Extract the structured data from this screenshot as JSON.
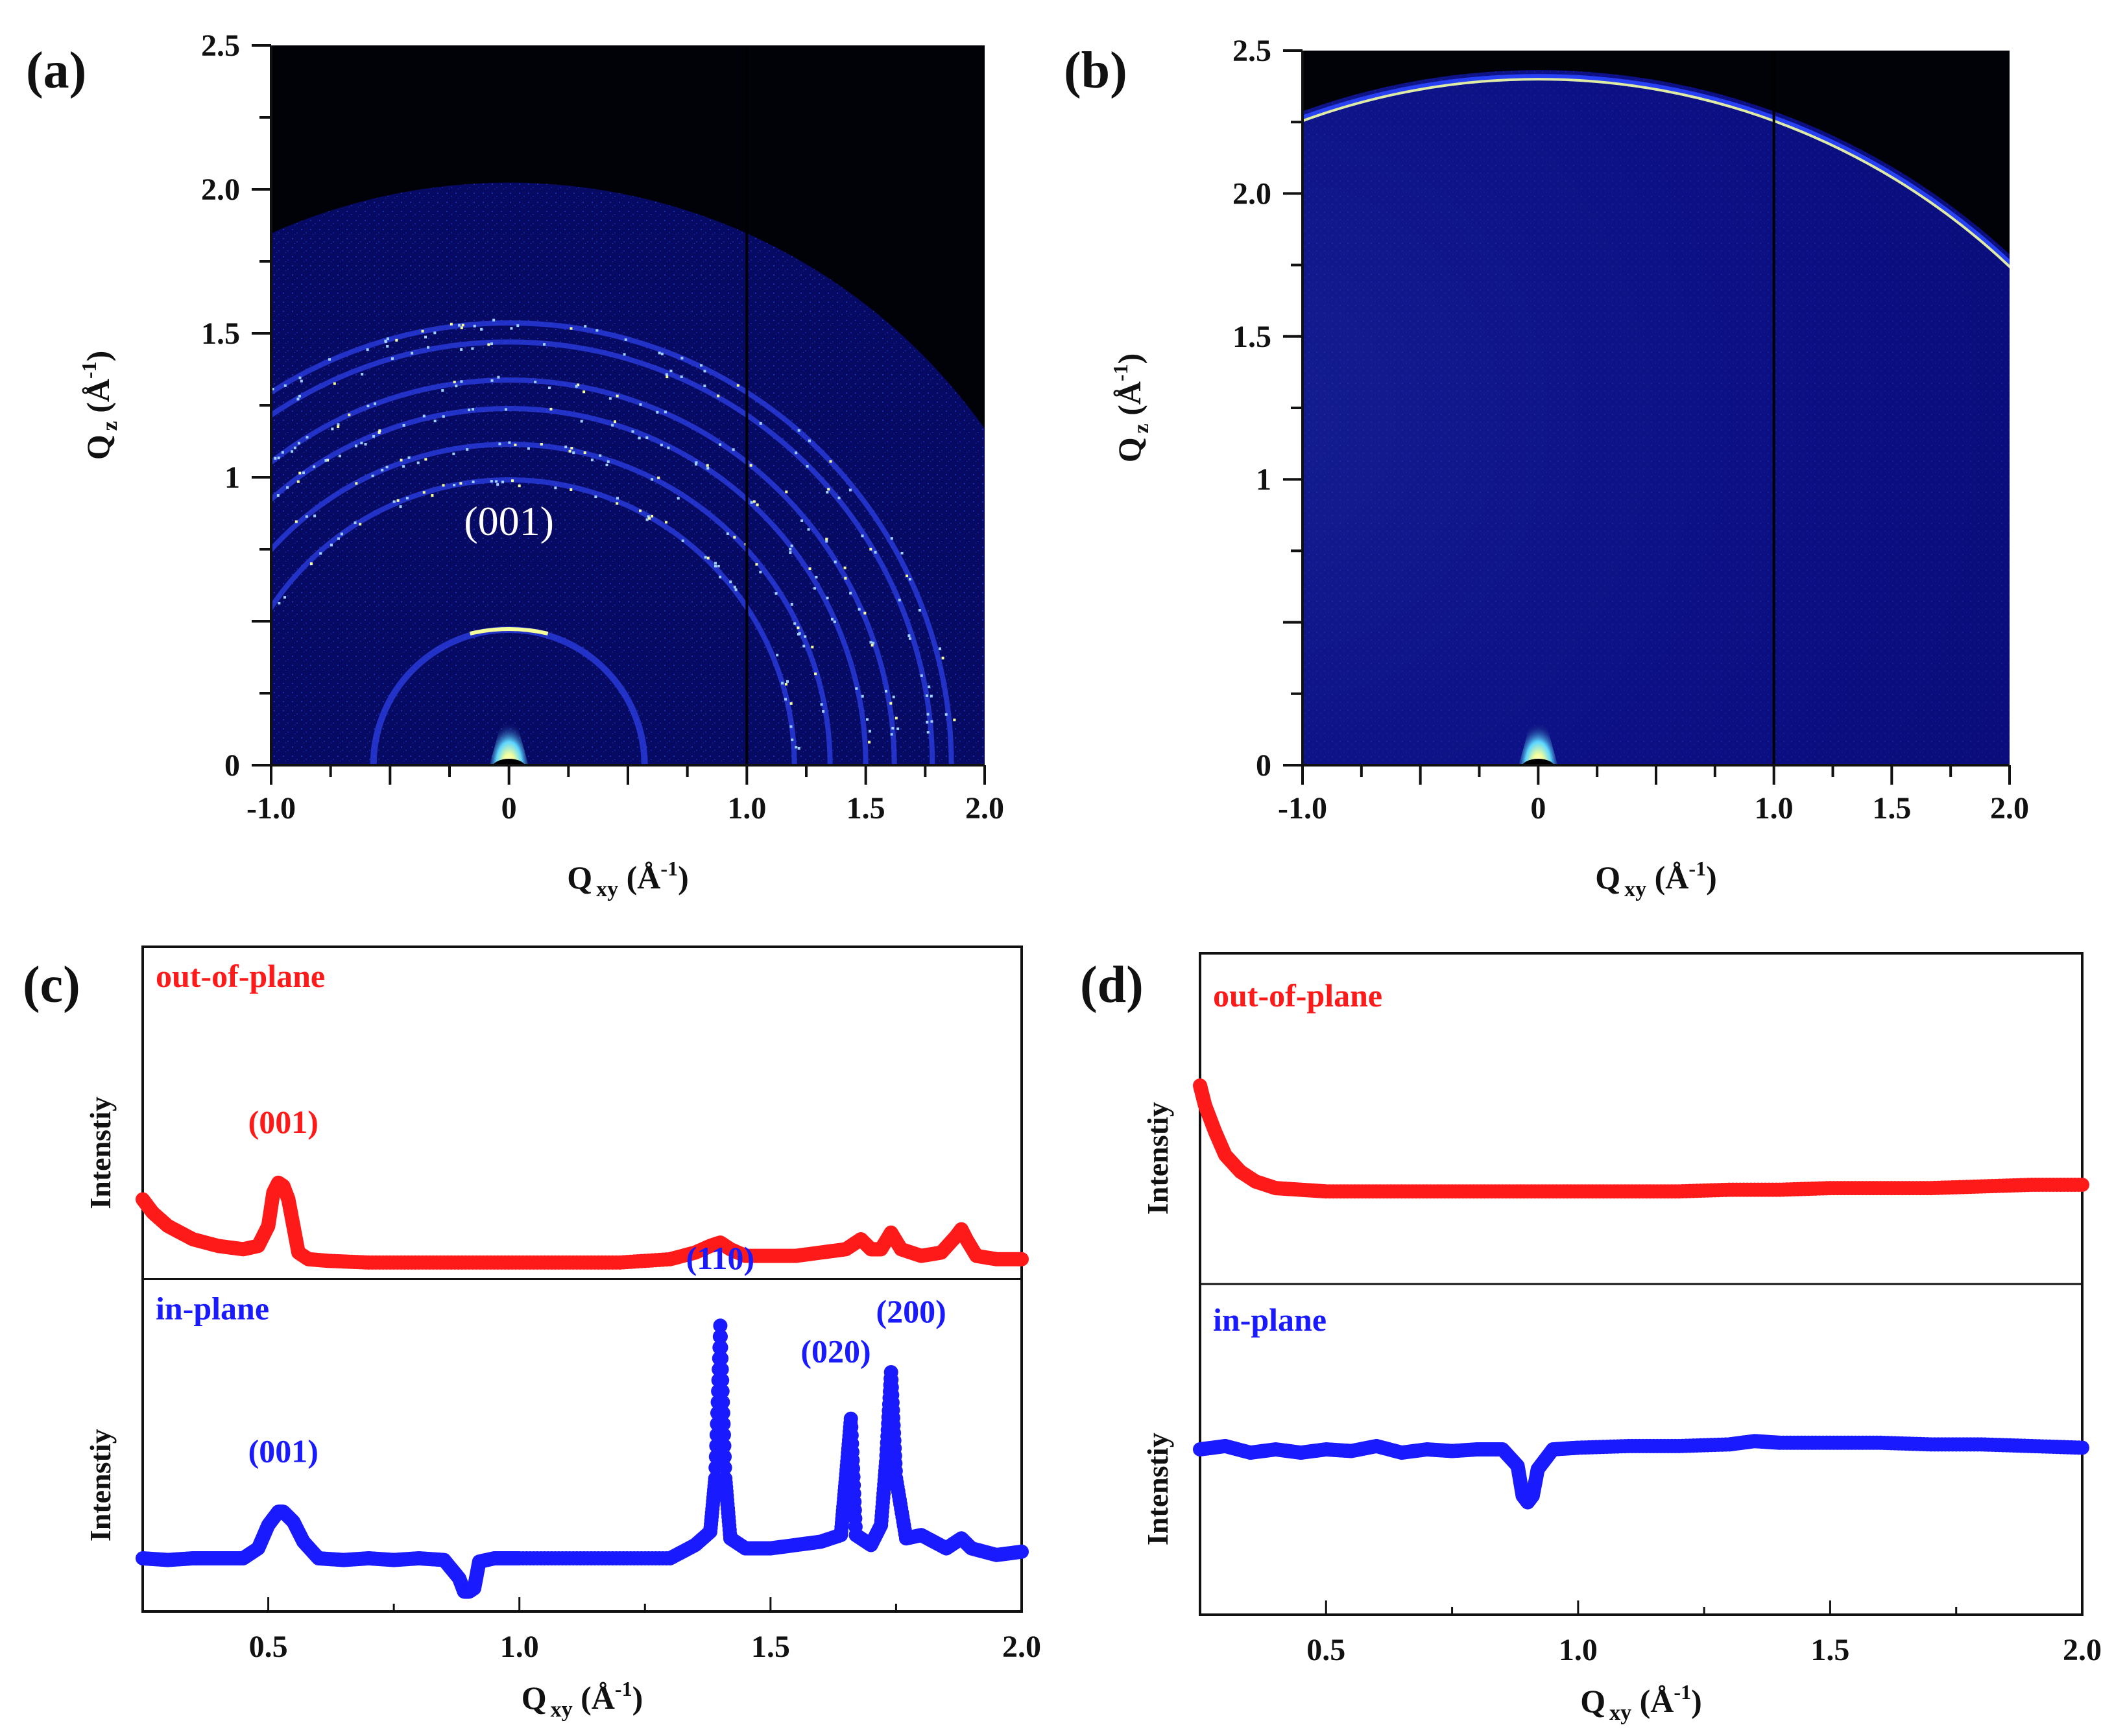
{
  "chart_data": [
    {
      "panel": "(a)",
      "type": "heatmap",
      "title": "",
      "xlabel_main": "Q",
      "xlabel_sub": "xy",
      "xlabel_unit": " (Å",
      "xlabel_unit_exp": "-1",
      "xlabel_close": ")",
      "ylabel_main": "Q",
      "ylabel_sub": "z",
      "ylabel_unit": " (Å",
      "ylabel_unit_exp": "-1",
      "ylabel_close": ")",
      "xlim": [
        -1.0,
        2.0
      ],
      "ylim": [
        0,
        2.5
      ],
      "xticks": [
        {
          "v": -1.0,
          "label": "-1.0"
        },
        {
          "v": 0,
          "label": "0"
        },
        {
          "v": 1.0,
          "label": "1.0"
        },
        {
          "v": 1.5,
          "label": "1.5"
        },
        {
          "v": 2.0,
          "label": "2.0"
        }
      ],
      "yticks": [
        {
          "v": 0,
          "label": "0"
        },
        {
          "v": 1,
          "label": "1"
        },
        {
          "v": 1.5,
          "label": "1.5"
        },
        {
          "v": 2.0,
          "label": "2.0"
        },
        {
          "v": 2.5,
          "label": "2.5"
        }
      ],
      "rings_q": [
        0.57,
        1.2,
        1.35,
        1.5,
        1.62,
        1.78,
        1.86
      ],
      "annotations": [
        {
          "text": "(001)",
          "x": 0.0,
          "y": 0.8
        }
      ],
      "detector_gap_q": 1.0,
      "detector_edge_q": 2.45
    },
    {
      "panel": "(b)",
      "type": "heatmap",
      "title": "",
      "xlabel_main": "Q",
      "xlabel_sub": "xy",
      "xlabel_unit": " (Å",
      "xlabel_unit_exp": "-1",
      "xlabel_close": ")",
      "ylabel_main": "Q",
      "ylabel_sub": "z",
      "ylabel_unit": " (Å",
      "ylabel_unit_exp": "-1",
      "ylabel_close": ")",
      "xlim": [
        -1.0,
        2.0
      ],
      "ylim": [
        0,
        2.5
      ],
      "xticks": [
        {
          "v": -1.0,
          "label": "-1.0"
        },
        {
          "v": 0,
          "label": "0"
        },
        {
          "v": 1.0,
          "label": "1.0"
        },
        {
          "v": 1.5,
          "label": "1.5"
        },
        {
          "v": 2.0,
          "label": "2.0"
        }
      ],
      "yticks": [
        {
          "v": 0,
          "label": "0"
        },
        {
          "v": 1,
          "label": "1"
        },
        {
          "v": 1.5,
          "label": "1.5"
        },
        {
          "v": 2.0,
          "label": "2.0"
        },
        {
          "v": 2.5,
          "label": "2.5"
        }
      ],
      "rings_q": [
        2.92
      ],
      "annotations": [],
      "detector_gap_q": 1.0,
      "detector_edge_q": 2.95
    },
    {
      "panel": "(c)",
      "type": "line",
      "xlabel_main": "Q",
      "xlabel_sub": "xy",
      "xlabel_unit": " (Å",
      "xlabel_unit_exp": "-1",
      "xlabel_close": ")",
      "xlim": [
        0.25,
        2.0
      ],
      "xticks": [
        {
          "v": 0.5,
          "label": "0.5"
        },
        {
          "v": 1.0,
          "label": "1.0"
        },
        {
          "v": 1.5,
          "label": "1.5"
        },
        {
          "v": 2.0,
          "label": "2.0"
        }
      ],
      "series": [
        {
          "name": "out-of-plane",
          "ylabel": "Intenstiy",
          "color": "#ff1a1a",
          "ylim": [
            0,
            10
          ],
          "x": [
            0.25,
            0.27,
            0.3,
            0.35,
            0.4,
            0.45,
            0.48,
            0.5,
            0.51,
            0.52,
            0.53,
            0.54,
            0.55,
            0.56,
            0.58,
            0.62,
            0.7,
            0.8,
            0.9,
            1.0,
            1.1,
            1.2,
            1.3,
            1.35,
            1.38,
            1.4,
            1.42,
            1.45,
            1.5,
            1.55,
            1.6,
            1.65,
            1.68,
            1.7,
            1.72,
            1.74,
            1.76,
            1.8,
            1.84,
            1.87,
            1.88,
            1.89,
            1.91,
            1.95,
            2.0
          ],
          "values": [
            2.4,
            2.0,
            1.6,
            1.2,
            1.0,
            0.9,
            1.0,
            1.6,
            2.6,
            2.9,
            2.8,
            2.4,
            1.6,
            0.8,
            0.6,
            0.55,
            0.5,
            0.5,
            0.5,
            0.5,
            0.5,
            0.5,
            0.6,
            0.8,
            1.0,
            1.1,
            0.9,
            0.7,
            0.7,
            0.7,
            0.8,
            0.9,
            1.2,
            0.9,
            0.9,
            1.4,
            0.9,
            0.7,
            0.8,
            1.3,
            1.5,
            1.2,
            0.7,
            0.6,
            0.6
          ],
          "annotations": [
            {
              "text": "(001)",
              "x": 0.53,
              "y": 4.4
            }
          ]
        },
        {
          "name": "in-plane",
          "ylabel": "Intenstiy",
          "color": "#1a1aff",
          "ylim": [
            0,
            10
          ],
          "x": [
            0.25,
            0.3,
            0.35,
            0.4,
            0.45,
            0.48,
            0.5,
            0.52,
            0.53,
            0.55,
            0.57,
            0.6,
            0.65,
            0.7,
            0.75,
            0.8,
            0.85,
            0.88,
            0.89,
            0.9,
            0.91,
            0.92,
            0.95,
            1.0,
            1.1,
            1.2,
            1.3,
            1.35,
            1.38,
            1.39,
            1.4,
            1.41,
            1.42,
            1.45,
            1.5,
            1.55,
            1.6,
            1.64,
            1.65,
            1.66,
            1.67,
            1.7,
            1.72,
            1.73,
            1.74,
            1.75,
            1.77,
            1.8,
            1.85,
            1.88,
            1.9,
            1.95,
            2.0
          ],
          "values": [
            1.6,
            1.55,
            1.6,
            1.6,
            1.6,
            1.9,
            2.6,
            3.0,
            3.0,
            2.7,
            2.1,
            1.6,
            1.55,
            1.6,
            1.55,
            1.6,
            1.55,
            1.0,
            0.6,
            0.6,
            0.7,
            1.5,
            1.6,
            1.6,
            1.6,
            1.6,
            1.6,
            2.0,
            2.4,
            4.0,
            8.6,
            4.0,
            2.2,
            1.9,
            1.9,
            2.0,
            2.1,
            2.3,
            4.0,
            5.8,
            2.3,
            2.0,
            2.6,
            4.5,
            7.2,
            4.0,
            2.2,
            2.3,
            1.9,
            2.2,
            1.9,
            1.7,
            1.8
          ],
          "annotations": [
            {
              "text": "(001)",
              "x": 0.53,
              "y": 4.5
            },
            {
              "text": "(110)",
              "x": 1.4,
              "y": 10.3
            },
            {
              "text": "(020)",
              "x": 1.63,
              "y": 7.5
            },
            {
              "text": "(200)",
              "x": 1.78,
              "y": 8.7
            }
          ]
        }
      ]
    },
    {
      "panel": "(d)",
      "type": "line",
      "xlabel_main": "Q",
      "xlabel_sub": "xy",
      "xlabel_unit": " (Å",
      "xlabel_unit_exp": "-1",
      "xlabel_close": ")",
      "xlim": [
        0.25,
        2.0
      ],
      "xticks": [
        {
          "v": 0.5,
          "label": "0.5"
        },
        {
          "v": 1.0,
          "label": "1.0"
        },
        {
          "v": 1.5,
          "label": "1.5"
        },
        {
          "v": 2.0,
          "label": "2.0"
        }
      ],
      "series": [
        {
          "name": "out-of-plane",
          "ylabel": "Intenstiy",
          "color": "#ff1a1a",
          "ylim": [
            0,
            10
          ],
          "x": [
            0.25,
            0.26,
            0.28,
            0.3,
            0.33,
            0.36,
            0.4,
            0.45,
            0.5,
            0.6,
            0.7,
            0.8,
            0.9,
            1.0,
            1.1,
            1.2,
            1.3,
            1.4,
            1.5,
            1.6,
            1.7,
            1.8,
            1.9,
            2.0
          ],
          "values": [
            6.0,
            5.4,
            4.6,
            3.9,
            3.4,
            3.1,
            2.9,
            2.85,
            2.8,
            2.8,
            2.8,
            2.8,
            2.8,
            2.8,
            2.8,
            2.8,
            2.85,
            2.85,
            2.9,
            2.9,
            2.9,
            2.95,
            3.0,
            3.0
          ],
          "annotations": []
        },
        {
          "name": "in-plane",
          "ylabel": "Intenstiy",
          "color": "#1a1aff",
          "ylim": [
            0,
            10
          ],
          "x": [
            0.25,
            0.3,
            0.35,
            0.4,
            0.45,
            0.5,
            0.55,
            0.6,
            0.65,
            0.7,
            0.75,
            0.8,
            0.85,
            0.88,
            0.89,
            0.9,
            0.91,
            0.92,
            0.95,
            1.0,
            1.1,
            1.2,
            1.3,
            1.35,
            1.4,
            1.5,
            1.6,
            1.7,
            1.8,
            1.9,
            2.0
          ],
          "values": [
            5.0,
            5.1,
            4.9,
            5.0,
            4.9,
            5.0,
            4.95,
            5.1,
            4.9,
            5.0,
            4.95,
            5.0,
            5.0,
            4.5,
            3.6,
            3.4,
            3.6,
            4.4,
            5.0,
            5.05,
            5.1,
            5.1,
            5.15,
            5.25,
            5.2,
            5.2,
            5.2,
            5.15,
            5.15,
            5.1,
            5.05
          ],
          "annotations": []
        }
      ]
    }
  ],
  "panel_labels": [
    "(a)",
    "(b)",
    "(c)",
    "(d)"
  ],
  "colors": {
    "detector_dark": "#010108",
    "detector_blue": "#0b0b6e",
    "ring_blue": "#2a46ff",
    "hot_yellow": "#f6ff9a",
    "out_of_plane": "#ff1a1a",
    "in_plane": "#1a1aff"
  }
}
